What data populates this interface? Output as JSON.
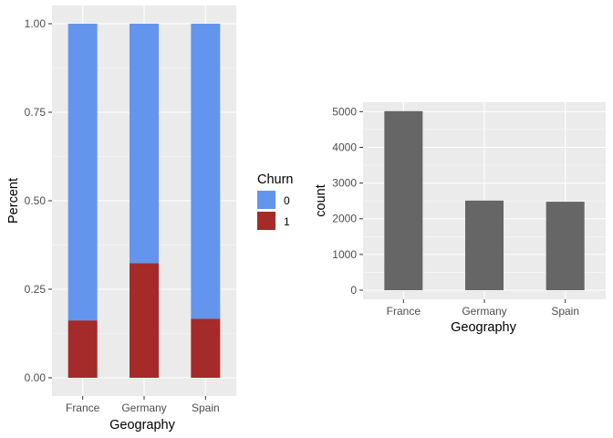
{
  "colors": {
    "panel_bg": "#ebebeb",
    "grid_major": "#ffffff",
    "churn_0": "#6495ed",
    "churn_1": "#a52a2a",
    "count_bar": "#666666",
    "tick_text": "#4d4d4d"
  },
  "legend": {
    "title": "Churn",
    "items": [
      {
        "label": "0",
        "color": "#6495ed"
      },
      {
        "label": "1",
        "color": "#a52a2a"
      }
    ]
  },
  "chart_data": [
    {
      "type": "bar",
      "stacked": true,
      "categories": [
        "France",
        "Germany",
        "Spain"
      ],
      "series": [
        {
          "name": "0",
          "values": [
            0.838,
            0.676,
            0.833
          ]
        },
        {
          "name": "1",
          "values": [
            0.162,
            0.324,
            0.167
          ]
        }
      ],
      "xlabel": "Geography",
      "ylabel": "Percent",
      "ylim": [
        0,
        1.0
      ],
      "yticks": [
        "0.00",
        "0.25",
        "0.50",
        "0.75",
        "1.00"
      ],
      "ytick_values": [
        0,
        0.25,
        0.5,
        0.75,
        1.0
      ],
      "grid": true,
      "legend_position": "right"
    },
    {
      "type": "bar",
      "categories": [
        "France",
        "Germany",
        "Spain"
      ],
      "values": [
        5014,
        2509,
        2477
      ],
      "xlabel": "Geography",
      "ylabel": "count",
      "ylim": [
        0,
        5265
      ],
      "yticks": [
        "0",
        "1000",
        "2000",
        "3000",
        "4000",
        "5000"
      ],
      "ytick_values": [
        0,
        1000,
        2000,
        3000,
        4000,
        5000
      ],
      "grid": true
    }
  ]
}
